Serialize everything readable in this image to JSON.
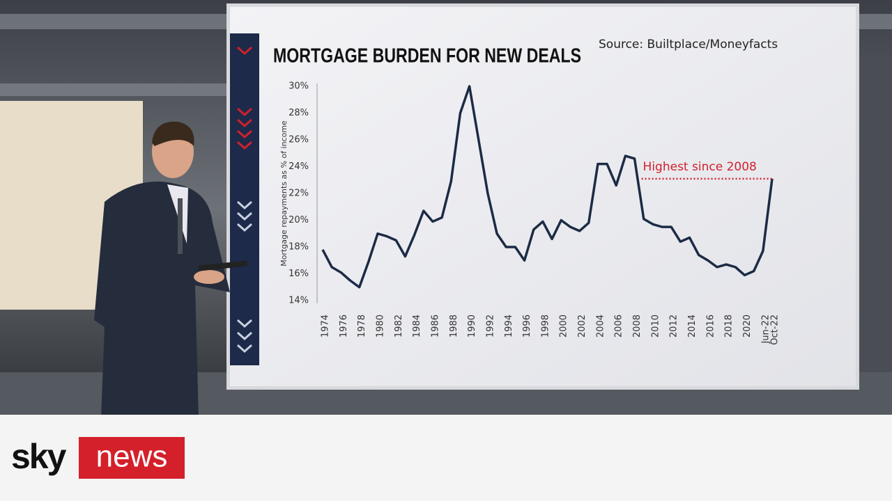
{
  "chart_data": {
    "type": "line",
    "title": "MORTGAGE BURDEN FOR NEW DEALS",
    "source": "Source: Builtplace/Moneyfacts",
    "y_label": "Mortgage repayments as % of income",
    "annotation": "Highest since 2008",
    "categories": [
      "1974",
      null,
      "1976",
      null,
      "1978",
      null,
      "1980",
      null,
      "1982",
      null,
      "1984",
      null,
      "1986",
      null,
      "1988",
      null,
      "1990",
      null,
      "1992",
      null,
      "1994",
      null,
      "1996",
      null,
      "1998",
      null,
      "2000",
      null,
      "2002",
      null,
      "2004",
      null,
      "2006",
      null,
      "2008",
      null,
      "2010",
      null,
      "2012",
      null,
      "2014",
      null,
      "2016",
      null,
      "2018",
      null,
      "2020",
      null,
      "Jun-22",
      "Oct-22"
    ],
    "series": [
      {
        "name": "Mortgage burden",
        "color": "#1c2b45",
        "values": [
          17.8,
          16.5,
          16.1,
          15.5,
          15.0,
          16.9,
          19.0,
          18.8,
          18.5,
          17.3,
          18.9,
          20.7,
          19.9,
          20.2,
          22.9,
          28.0,
          30.0,
          26.0,
          22.0,
          19.0,
          18.0,
          18.0,
          17.0,
          19.3,
          19.9,
          18.6,
          20.0,
          19.5,
          19.2,
          19.8,
          24.2,
          24.2,
          22.6,
          24.8,
          24.6,
          20.1,
          19.7,
          19.5,
          19.5,
          18.4,
          18.7,
          17.4,
          17.0,
          16.5,
          16.7,
          16.5,
          15.9,
          16.2,
          17.7,
          23.1
        ]
      }
    ],
    "ylim": [
      14,
      30
    ],
    "yticks": [
      {
        "value": 14,
        "label": "14%"
      },
      {
        "value": 16,
        "label": "16%"
      },
      {
        "value": 18,
        "label": "18%"
      },
      {
        "value": 20,
        "label": "20%"
      },
      {
        "value": 22,
        "label": "22%"
      },
      {
        "value": 24,
        "label": "24%"
      },
      {
        "value": 26,
        "label": "26%"
      },
      {
        "value": 28,
        "label": "28%"
      },
      {
        "value": 30,
        "label": "30%"
      }
    ],
    "annotation_color": "#d0202e",
    "grid": false
  },
  "logo": {
    "brand": "sky",
    "channel": "news"
  }
}
